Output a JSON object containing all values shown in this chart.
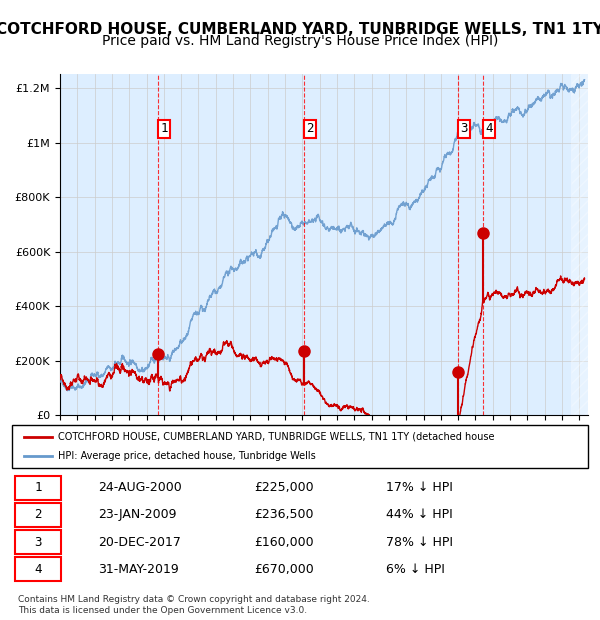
{
  "title": "COTCHFORD HOUSE, CUMBERLAND YARD, TUNBRIDGE WELLS, TN1 1TY",
  "subtitle": "Price paid vs. HM Land Registry's House Price Index (HPI)",
  "title_fontsize": 11,
  "subtitle_fontsize": 10,
  "background_color": "#ffffff",
  "plot_bg_color": "#ddeeff",
  "hatch_color": "#cccccc",
  "hpi_color": "#6699cc",
  "price_color": "#cc0000",
  "grid_color": "#cccccc",
  "sale_marker_color": "#cc0000",
  "dashed_line_color": "#ff0000",
  "xlim_start": 1995.0,
  "xlim_end": 2025.5,
  "ylim_min": 0,
  "ylim_max": 1250000,
  "yticks": [
    0,
    200000,
    400000,
    600000,
    800000,
    1000000,
    1200000
  ],
  "ytick_labels": [
    "£0",
    "£200K",
    "£400K",
    "£600K",
    "£800K",
    "£1M",
    "£1.2M"
  ],
  "sale_dates_year": [
    2000.65,
    2009.07,
    2017.97,
    2019.42
  ],
  "sale_prices": [
    225000,
    236500,
    160000,
    670000
  ],
  "sale_labels": [
    "1",
    "2",
    "3",
    "4"
  ],
  "legend_line1": "COTCHFORD HOUSE, CUMBERLAND YARD, TUNBRIDGE WELLS, TN1 1TY (detached house",
  "legend_line2": "HPI: Average price, detached house, Tunbridge Wells",
  "table_rows": [
    [
      "1",
      "24-AUG-2000",
      "£225,000",
      "17% ↓ HPI"
    ],
    [
      "2",
      "23-JAN-2009",
      "£236,500",
      "44% ↓ HPI"
    ],
    [
      "3",
      "20-DEC-2017",
      "£160,000",
      "78% ↓ HPI"
    ],
    [
      "4",
      "31-MAY-2019",
      "£670,000",
      "6% ↓ HPI"
    ]
  ],
  "footnote": "Contains HM Land Registry data © Crown copyright and database right 2024.\nThis data is licensed under the Open Government Licence v3.0."
}
